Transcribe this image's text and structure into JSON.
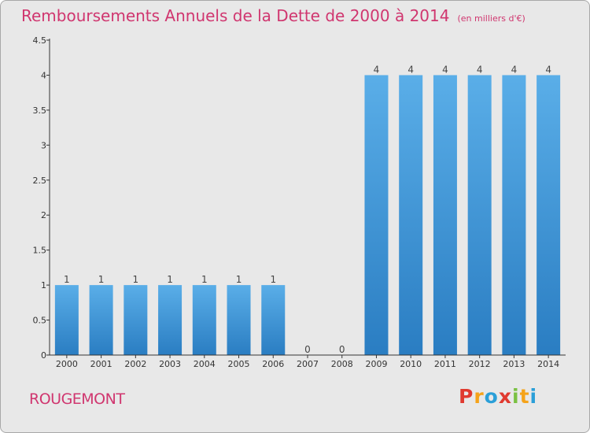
{
  "title": {
    "main": "Remboursements Annuels de la Dette de 2000 à 2014",
    "unit": "(en milliers d'€)"
  },
  "place": "ROUGEMONT",
  "logo": {
    "letters": [
      "P",
      "r",
      "o",
      "x",
      "i",
      "t",
      "i"
    ],
    "colors": [
      "#e03a2f",
      "#f5a31a",
      "#2a9fd8",
      "#e03a2f",
      "#7bc143",
      "#f5a31a",
      "#2a9fd8"
    ]
  },
  "colors": {
    "title": "#d0366f",
    "bar_light": "#5aaee8",
    "bar_dark": "#2a7dc2",
    "background": "#e8e8e8"
  },
  "chart_data": {
    "type": "bar",
    "title": "Remboursements Annuels de la Dette de 2000 à 2014",
    "categories": [
      "2000",
      "2001",
      "2002",
      "2003",
      "2004",
      "2005",
      "2006",
      "2007",
      "2008",
      "2009",
      "2010",
      "2011",
      "2012",
      "2013",
      "2014"
    ],
    "values": [
      1,
      1,
      1,
      1,
      1,
      1,
      1,
      0,
      0,
      4,
      4,
      4,
      4,
      4,
      4
    ],
    "ylim": [
      0,
      4.5
    ],
    "yticks": [
      0,
      0.5,
      1,
      1.5,
      2,
      2.5,
      3,
      3.5,
      4,
      4.5
    ],
    "ytick_labels": [
      "0",
      "0.5",
      "1",
      "1.5",
      "2",
      "2.5",
      "3",
      "3.5",
      "4",
      "4.5"
    ],
    "grid": false,
    "legend": "none"
  }
}
